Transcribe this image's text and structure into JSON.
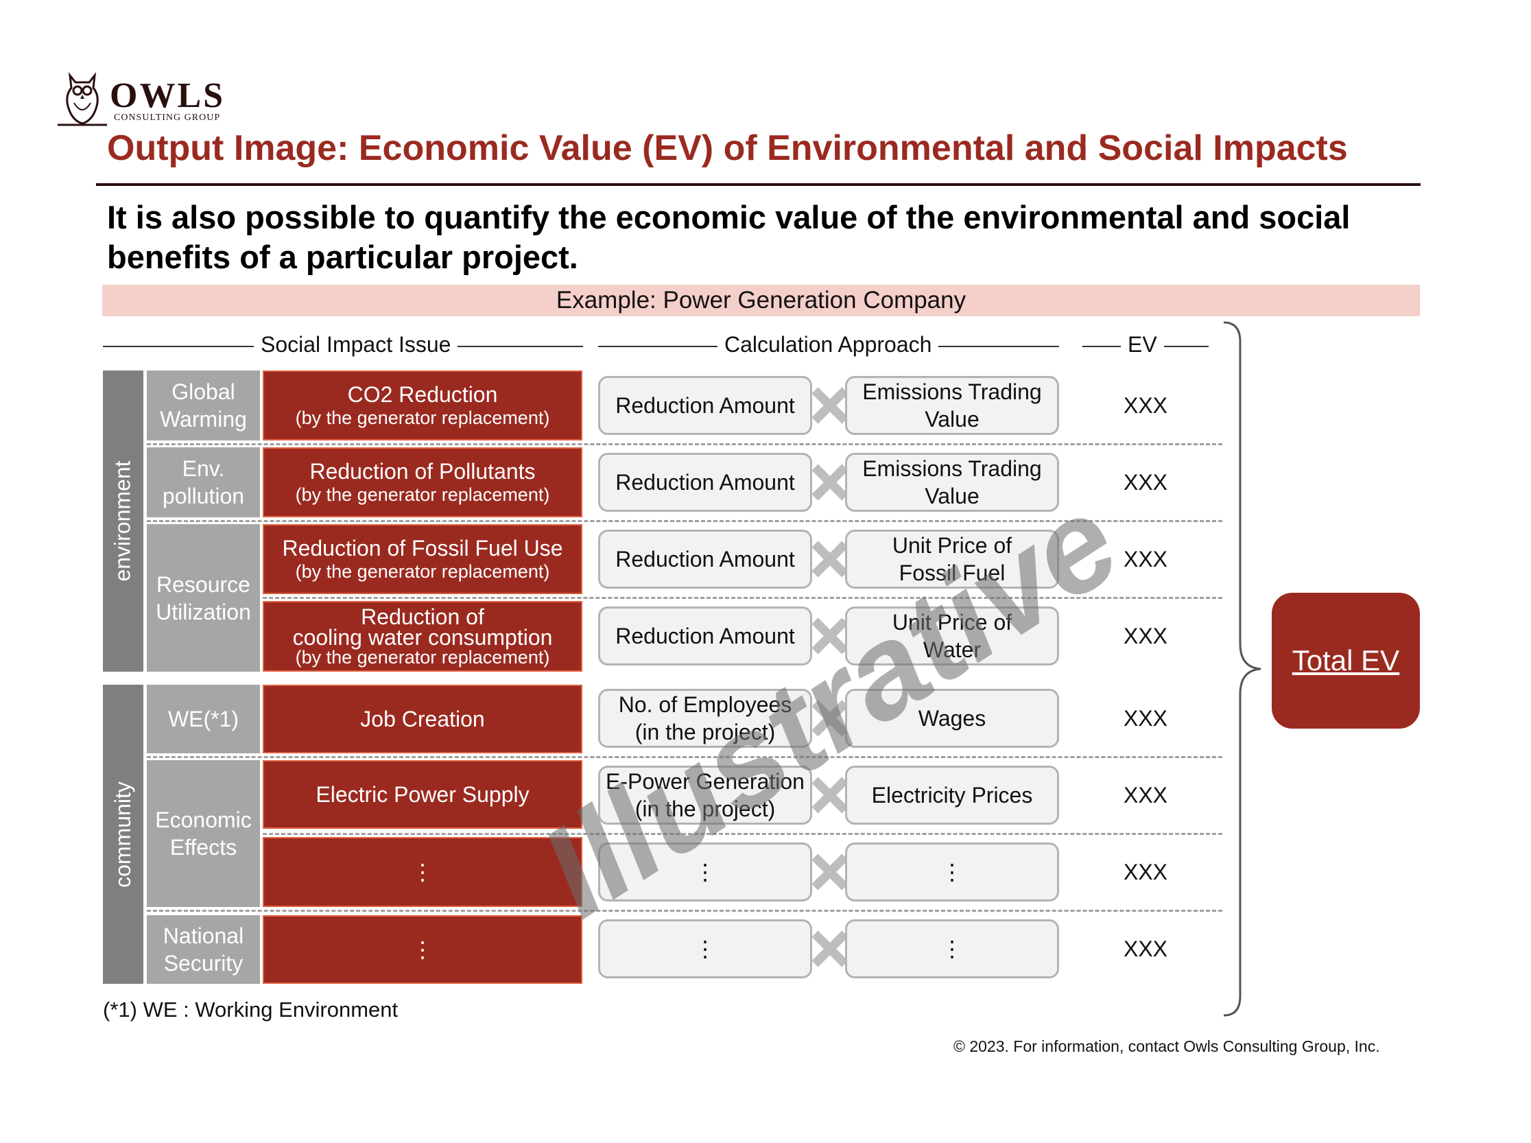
{
  "logo": {
    "word": "OWLS",
    "sub": "CONSULTING GROUP",
    "icon": "owl-icon"
  },
  "title": "Output Image: Economic Value (EV) of Environmental and Social Impacts",
  "subtitle": "It is also possible to quantify the economic value of the environmental and social benefits of a particular project.",
  "example": "Example: Power Generation Company",
  "headers": {
    "issue": "Social Impact Issue",
    "calc": "Calculation Approach",
    "ev": "EV"
  },
  "categories": {
    "environment": "environment",
    "community": "community"
  },
  "subcategories": {
    "global_warming": "Global\nWarming",
    "env_pollution": "Env.\npollution",
    "resource": "Resource\nUtilization",
    "we": "WE(*1)",
    "economic": "Economic\nEffects",
    "national": "National\nSecurity"
  },
  "rows": [
    {
      "issue": "CO2 Reduction",
      "note": "(by the generator replacement)",
      "calc1": "Reduction Amount",
      "calc2": "Emissions Trading\nValue",
      "ev": "XXX"
    },
    {
      "issue": "Reduction of Pollutants",
      "note": "(by the generator replacement)",
      "calc1": "Reduction Amount",
      "calc2": "Emissions Trading\nValue",
      "ev": "XXX"
    },
    {
      "issue": "Reduction of Fossil Fuel Use",
      "note": "(by the generator replacement)",
      "calc1": "Reduction Amount",
      "calc2": "Unit Price of\nFossil Fuel",
      "ev": "XXX"
    },
    {
      "issue": "Reduction of\ncooling water consumption",
      "note": "(by the generator replacement)",
      "calc1": "Reduction Amount",
      "calc2": "Unit Price of\nWater",
      "ev": "XXX"
    },
    {
      "issue": "Job Creation",
      "note": "",
      "calc1": "No. of Employees\n(in the project)",
      "calc2": "Wages",
      "ev": "XXX"
    },
    {
      "issue": "Electric Power Supply",
      "note": "",
      "calc1": "E-Power Generation\n(in the project)",
      "calc2": "Electricity Prices",
      "ev": "XXX"
    },
    {
      "issue": "⋮",
      "note": "",
      "calc1": "⋮",
      "calc2": "⋮",
      "ev": "XXX"
    },
    {
      "issue": "⋮",
      "note": "",
      "calc1": "⋮",
      "calc2": "⋮",
      "ev": "XXX"
    }
  ],
  "total": "Total EV",
  "watermark": "Illustrative",
  "footnote": "(*1) WE : Working Environment",
  "copyright": "© 2023. For information, contact Owls Consulting Group, Inc.",
  "colors": {
    "accent": "#9a2a20",
    "subcategory": "#a6a6a6",
    "category": "#7f7f7f",
    "example_bar": "#f5cfca"
  }
}
